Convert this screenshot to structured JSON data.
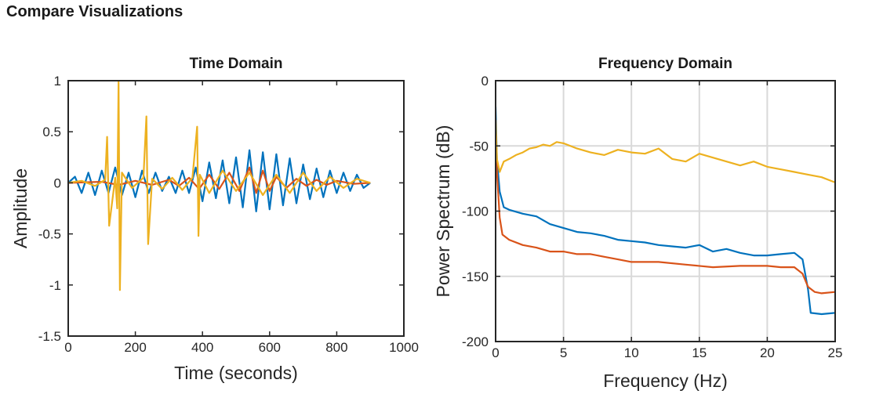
{
  "page": {
    "title": "Compare Visualizations"
  },
  "colors": {
    "series1": "#0072bd",
    "series2": "#d95319",
    "series3": "#edb120",
    "axis": "#262626",
    "grid": "#d9d9d9"
  },
  "chart_data": [
    {
      "type": "line",
      "title": "Time Domain",
      "xlabel": "Time (seconds)",
      "ylabel": "Amplitude",
      "xlim": [
        0,
        1000
      ],
      "ylim": [
        -1.5,
        1
      ],
      "xticks": [
        0,
        200,
        400,
        600,
        800,
        1000
      ],
      "yticks": [
        -1.5,
        -1,
        -0.5,
        0,
        0.5,
        1
      ],
      "xtick_labels": [
        "0",
        "200",
        "400",
        "600",
        "800",
        "1000"
      ],
      "ytick_labels": [
        "-1.5",
        "-1",
        "-0.5",
        "0",
        "0.5",
        "1"
      ],
      "grid": false,
      "series": [
        {
          "color": "#0072bd",
          "x": [
            0,
            20,
            40,
            60,
            80,
            100,
            120,
            140,
            160,
            180,
            200,
            220,
            240,
            260,
            280,
            300,
            320,
            340,
            360,
            380,
            400,
            420,
            440,
            460,
            480,
            500,
            520,
            540,
            560,
            580,
            600,
            620,
            640,
            660,
            680,
            700,
            720,
            740,
            760,
            780,
            800,
            820,
            840,
            860,
            880,
            900
          ],
          "y": [
            0,
            0.06,
            -0.1,
            0.1,
            -0.12,
            0.12,
            -0.1,
            0.15,
            -0.12,
            0.1,
            -0.14,
            0.12,
            -0.1,
            0.1,
            -0.08,
            0.06,
            -0.1,
            0.12,
            -0.1,
            0.15,
            -0.18,
            0.2,
            -0.15,
            0.22,
            -0.2,
            0.25,
            -0.24,
            0.32,
            -0.28,
            0.3,
            -0.26,
            0.28,
            -0.22,
            0.24,
            -0.2,
            0.18,
            -0.16,
            0.14,
            -0.14,
            0.12,
            -0.1,
            0.1,
            -0.08,
            0.08,
            -0.05,
            0
          ]
        },
        {
          "color": "#d95319",
          "x": [
            0,
            100,
            150,
            200,
            250,
            300,
            330,
            360,
            390,
            420,
            450,
            480,
            510,
            540,
            560,
            580,
            600,
            620,
            650,
            680,
            710,
            740,
            770,
            800,
            850,
            900
          ],
          "y": [
            0,
            0.01,
            -0.02,
            0.02,
            -0.02,
            0.03,
            -0.03,
            0.05,
            -0.06,
            0.08,
            -0.06,
            0.1,
            -0.08,
            0.15,
            -0.1,
            0.12,
            -0.08,
            0.06,
            -0.05,
            0.04,
            -0.03,
            0.03,
            -0.02,
            0.02,
            -0.01,
            0
          ]
        },
        {
          "color": "#edb120",
          "x": [
            0,
            40,
            80,
            110,
            116,
            122,
            140,
            146,
            150,
            154,
            160,
            190,
            224,
            233,
            238,
            250,
            280,
            310,
            340,
            370,
            384,
            388,
            392,
            420,
            460,
            500,
            540,
            580,
            620,
            660,
            700,
            740,
            780,
            820,
            860,
            900
          ],
          "y": [
            0,
            0.02,
            -0.03,
            0.03,
            0.45,
            -0.42,
            0.05,
            -0.25,
            1.0,
            -1.05,
            0.1,
            -0.05,
            0.05,
            0.65,
            -0.6,
            0.04,
            -0.06,
            0.05,
            -0.07,
            0.05,
            0.55,
            -0.52,
            0.08,
            -0.1,
            0.12,
            -0.08,
            0.1,
            -0.12,
            0.08,
            -0.1,
            0.1,
            -0.08,
            0.06,
            -0.05,
            0.04,
            0
          ]
        }
      ]
    },
    {
      "type": "line",
      "title": "Frequency Domain",
      "xlabel": "Frequency (Hz)",
      "ylabel": "Power Spectrum (dB)",
      "xlim": [
        0,
        25
      ],
      "ylim": [
        -200,
        0
      ],
      "xticks": [
        0,
        5,
        10,
        15,
        20,
        25
      ],
      "yticks": [
        -200,
        -150,
        -100,
        -50,
        0
      ],
      "xtick_labels": [
        "0",
        "5",
        "10",
        "15",
        "20",
        "25"
      ],
      "ytick_labels": [
        "-200",
        "-150",
        "-100",
        "-50",
        "0"
      ],
      "grid": true,
      "series": [
        {
          "color": "#0072bd",
          "x": [
            0,
            0.1,
            0.3,
            0.6,
            1,
            2,
            3,
            4,
            5,
            6,
            7,
            8,
            9,
            10,
            11,
            12,
            13,
            14,
            15,
            16,
            17,
            18,
            19,
            20,
            21,
            22,
            22.6,
            23,
            23.2,
            24,
            25
          ],
          "y": [
            -20,
            -60,
            -85,
            -97,
            -99,
            -102,
            -104,
            -110,
            -113,
            -116,
            -117,
            -119,
            -122,
            -123,
            -124,
            -126,
            -127,
            -128,
            -126,
            -131,
            -129,
            -132,
            -134,
            -134,
            -133,
            -132,
            -137,
            -160,
            -178,
            -179,
            -178
          ]
        },
        {
          "color": "#d95319",
          "x": [
            0,
            0.1,
            0.3,
            0.5,
            1,
            2,
            3,
            4,
            5,
            6,
            7,
            8,
            9,
            10,
            12,
            14,
            16,
            18,
            20,
            21,
            22,
            22.6,
            23,
            23.5,
            24,
            25
          ],
          "y": [
            -30,
            -70,
            -105,
            -118,
            -122,
            -126,
            -128,
            -131,
            -131,
            -133,
            -133,
            -135,
            -137,
            -139,
            -139,
            -141,
            -143,
            -142,
            -142,
            -143,
            -143,
            -148,
            -158,
            -162,
            -163,
            -162
          ]
        },
        {
          "color": "#edb120",
          "x": [
            0,
            0.1,
            0.3,
            0.6,
            1,
            1.5,
            2,
            2.5,
            3,
            3.5,
            4,
            4.5,
            5,
            6,
            7,
            8,
            9,
            10,
            11,
            12,
            13,
            14,
            15,
            16,
            17,
            18,
            19,
            20,
            21,
            22,
            23,
            24,
            25
          ],
          "y": [
            -30,
            -60,
            -70,
            -62,
            -60,
            -57,
            -55,
            -52,
            -51,
            -49,
            -50,
            -47,
            -48,
            -52,
            -55,
            -57,
            -53,
            -55,
            -56,
            -52,
            -60,
            -62,
            -56,
            -59,
            -62,
            -65,
            -62,
            -66,
            -68,
            -70,
            -72,
            -74,
            -78
          ]
        }
      ]
    }
  ]
}
